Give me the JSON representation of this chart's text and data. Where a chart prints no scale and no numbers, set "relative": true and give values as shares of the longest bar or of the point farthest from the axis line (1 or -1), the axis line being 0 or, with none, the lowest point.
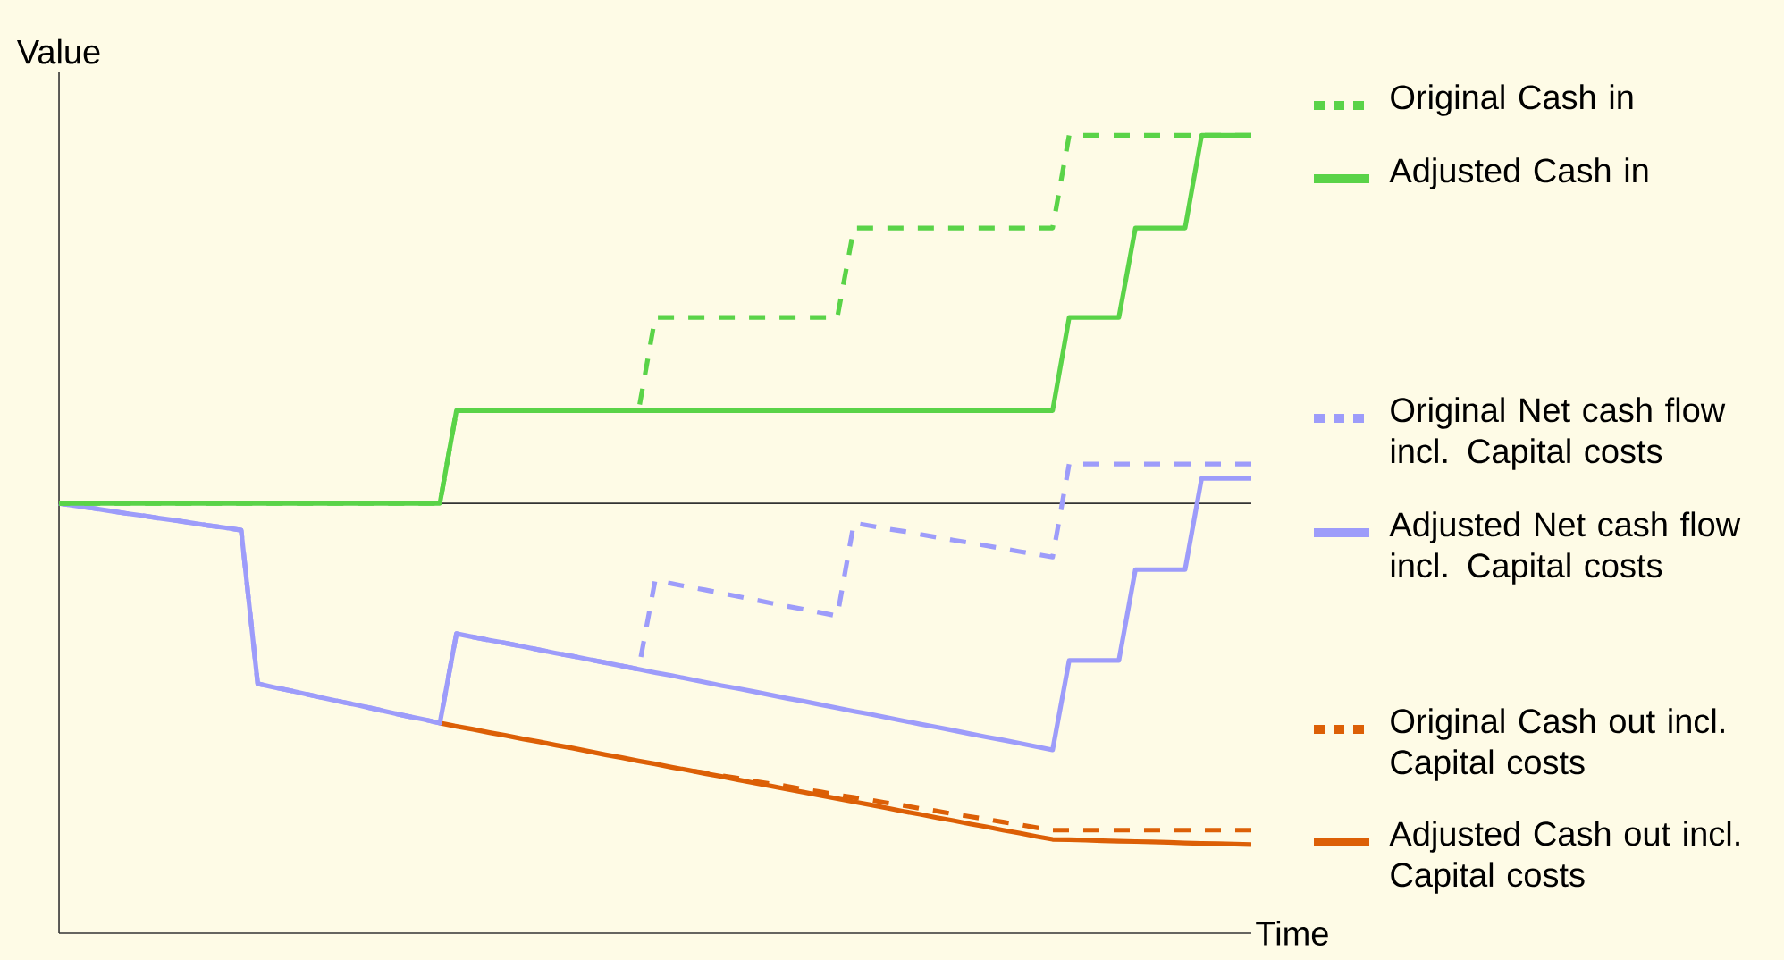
{
  "chart_data": {
    "type": "line",
    "xlabel": "Time",
    "ylabel": "Value",
    "relative": true,
    "legend": "right",
    "categories": [
      null,
      null,
      null,
      null,
      null,
      null,
      null,
      null,
      null,
      null,
      null,
      null,
      null,
      null,
      null,
      null,
      null,
      null,
      null,
      null,
      null,
      null,
      null,
      null,
      null,
      null,
      null,
      null,
      null,
      null,
      null,
      null,
      null,
      null,
      null,
      null,
      null,
      null,
      null,
      null,
      null,
      null,
      null,
      null,
      null,
      null,
      null,
      null,
      null,
      null,
      null,
      null,
      null,
      null,
      null,
      null,
      null,
      null,
      null,
      null,
      null,
      null,
      null,
      null,
      null,
      null,
      null,
      null,
      null,
      null,
      null,
      null,
      null
    ],
    "series": [
      {
        "name": "Original Cash in",
        "color": "#5ad348",
        "line_style": "dashed",
        "values": [
          0,
          0,
          0,
          0,
          0,
          0,
          0,
          0,
          0,
          0,
          0,
          0,
          0,
          0,
          0,
          0,
          0,
          0,
          0,
          0,
          0,
          0,
          0,
          0,
          0.252,
          0.252,
          0.252,
          0.252,
          0.252,
          0.252,
          0.252,
          0.252,
          0.252,
          0.252,
          0.252,
          0.252,
          0.505,
          0.505,
          0.505,
          0.505,
          0.505,
          0.505,
          0.505,
          0.505,
          0.505,
          0.505,
          0.505,
          0.505,
          0.748,
          0.748,
          0.748,
          0.748,
          0.748,
          0.748,
          0.748,
          0.748,
          0.748,
          0.748,
          0.748,
          0.748,
          0.748,
          1,
          1,
          1,
          1,
          1,
          1,
          1,
          1,
          1,
          1,
          1,
          1
        ]
      },
      {
        "name": "Adjusted Cash in",
        "color": "#5ad348",
        "line_style": "solid",
        "values": [
          0,
          0,
          0,
          0,
          0,
          0,
          0,
          0,
          0,
          0,
          0,
          0,
          0,
          0,
          0,
          0,
          0,
          0,
          0,
          0,
          0,
          0,
          0,
          0,
          0.252,
          0.252,
          0.252,
          0.252,
          0.252,
          0.252,
          0.252,
          0.252,
          0.252,
          0.252,
          0.252,
          0.252,
          0.252,
          0.252,
          0.252,
          0.252,
          0.252,
          0.252,
          0.252,
          0.252,
          0.252,
          0.252,
          0.252,
          0.252,
          0.252,
          0.252,
          0.252,
          0.252,
          0.252,
          0.252,
          0.252,
          0.252,
          0.252,
          0.252,
          0.252,
          0.252,
          0.252,
          0.505,
          0.505,
          0.505,
          0.505,
          0.748,
          0.748,
          0.748,
          0.748,
          1,
          1,
          1,
          1
        ]
      },
      {
        "name": "Original Net cash flow incl. Capital costs",
        "color": "#9d9cfa",
        "line_style": "dashed",
        "values": [
          0,
          -0.007,
          -0.013,
          -0.02,
          -0.027,
          -0.033,
          -0.04,
          -0.046,
          -0.053,
          -0.06,
          -0.066,
          -0.073,
          -0.49,
          -0.5,
          -0.509,
          -0.519,
          -0.529,
          -0.539,
          -0.548,
          -0.558,
          -0.568,
          -0.578,
          -0.587,
          -0.597,
          -0.354,
          -0.363,
          -0.372,
          -0.38,
          -0.389,
          -0.398,
          -0.407,
          -0.415,
          -0.424,
          -0.433,
          -0.442,
          -0.451,
          -0.209,
          -0.218,
          -0.227,
          -0.235,
          -0.244,
          -0.253,
          -0.262,
          -0.271,
          -0.28,
          -0.288,
          -0.297,
          -0.306,
          -0.053,
          -0.061,
          -0.069,
          -0.076,
          -0.084,
          -0.092,
          -0.1,
          -0.107,
          -0.115,
          -0.123,
          -0.131,
          -0.138,
          -0.146,
          0.107,
          0.107,
          0.107,
          0.107,
          0.107,
          0.107,
          0.107,
          0.107,
          0.107,
          0.107,
          0.107,
          0.107
        ]
      },
      {
        "name": "Adjusted Net cash flow incl. Capital costs",
        "color": "#9d9cfa",
        "line_style": "solid",
        "values": [
          0,
          -0.007,
          -0.013,
          -0.02,
          -0.027,
          -0.033,
          -0.04,
          -0.046,
          -0.053,
          -0.06,
          -0.066,
          -0.073,
          -0.49,
          -0.5,
          -0.509,
          -0.519,
          -0.529,
          -0.539,
          -0.548,
          -0.558,
          -0.568,
          -0.578,
          -0.587,
          -0.597,
          -0.354,
          -0.363,
          -0.372,
          -0.38,
          -0.389,
          -0.398,
          -0.407,
          -0.415,
          -0.424,
          -0.433,
          -0.442,
          -0.451,
          -0.46,
          -0.468,
          -0.477,
          -0.486,
          -0.495,
          -0.503,
          -0.512,
          -0.521,
          -0.53,
          -0.538,
          -0.547,
          -0.556,
          -0.565,
          -0.573,
          -0.582,
          -0.591,
          -0.6,
          -0.608,
          -0.617,
          -0.626,
          -0.635,
          -0.643,
          -0.652,
          -0.661,
          -0.67,
          -0.427,
          -0.427,
          -0.427,
          -0.427,
          -0.18,
          -0.18,
          -0.18,
          -0.18,
          0.068,
          0.068,
          0.068,
          0.068
        ]
      },
      {
        "name": "Original Cash out incl. Capital costs",
        "color": "#dc5f06",
        "line_style": "dashed",
        "values": [
          null,
          null,
          null,
          null,
          null,
          null,
          null,
          null,
          null,
          null,
          null,
          null,
          null,
          null,
          null,
          null,
          null,
          null,
          null,
          null,
          null,
          null,
          null,
          null,
          null,
          null,
          null,
          null,
          null,
          null,
          null,
          null,
          null,
          null,
          null,
          null,
          null,
          null,
          -0.725,
          -0.732,
          -0.74,
          -0.747,
          -0.755,
          -0.762,
          -0.769,
          -0.777,
          -0.784,
          -0.792,
          -0.799,
          -0.806,
          -0.814,
          -0.821,
          -0.829,
          -0.836,
          -0.844,
          -0.851,
          -0.858,
          -0.866,
          -0.873,
          -0.881,
          -0.888,
          -0.888,
          -0.888,
          -0.888,
          -0.888,
          -0.888,
          -0.888,
          -0.888,
          -0.888,
          -0.888,
          -0.888,
          -0.888,
          -0.888
        ]
      },
      {
        "name": "Adjusted Cash out incl. Capital costs",
        "color": "#dc5f06",
        "line_style": "solid",
        "values": [
          null,
          null,
          null,
          null,
          null,
          null,
          null,
          null,
          null,
          null,
          null,
          null,
          null,
          null,
          null,
          null,
          null,
          null,
          null,
          null,
          null,
          null,
          null,
          -0.597,
          -0.606,
          -0.614,
          -0.623,
          -0.631,
          -0.64,
          -0.648,
          -0.657,
          -0.665,
          -0.674,
          -0.683,
          -0.691,
          -0.7,
          -0.708,
          -0.717,
          -0.725,
          -0.734,
          -0.742,
          -0.751,
          -0.76,
          -0.768,
          -0.777,
          -0.785,
          -0.794,
          -0.802,
          -0.811,
          -0.819,
          -0.828,
          -0.837,
          -0.845,
          -0.854,
          -0.862,
          -0.871,
          -0.879,
          -0.888,
          -0.896,
          -0.905,
          -0.913,
          -0.914,
          -0.915,
          -0.917,
          -0.918,
          -0.919,
          -0.92,
          -0.921,
          -0.923,
          -0.924,
          -0.925,
          -0.926,
          -0.927
        ]
      }
    ]
  }
}
